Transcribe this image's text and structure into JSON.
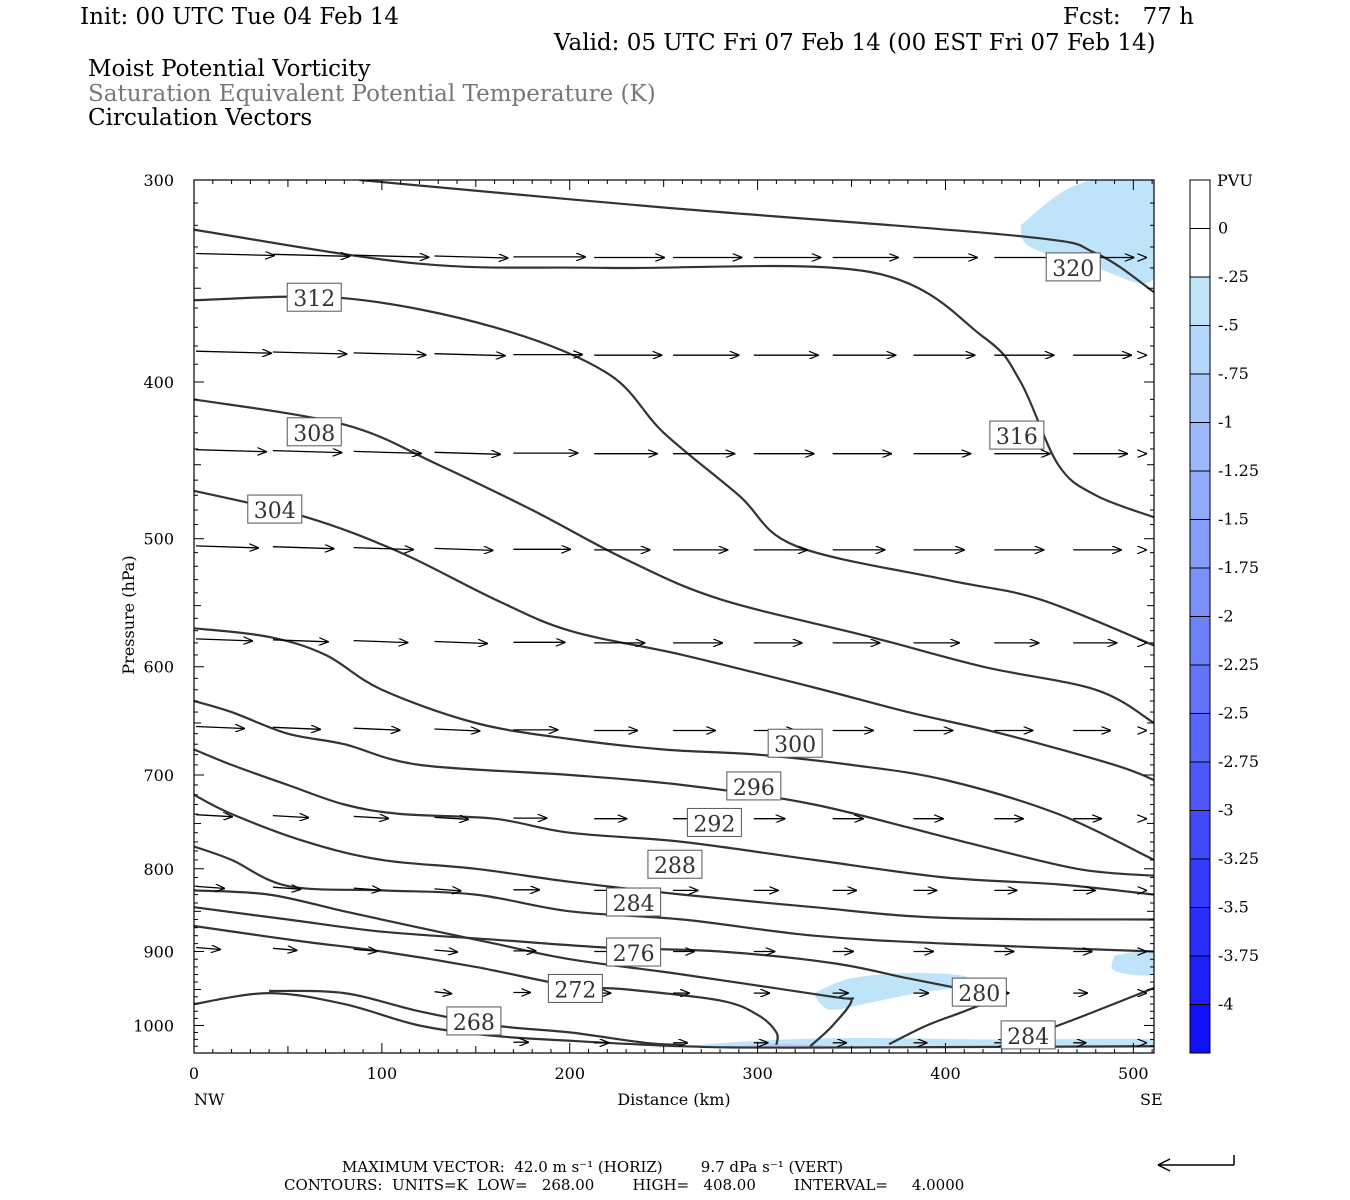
{
  "header": {
    "init": "Init: 00 UTC Tue 04 Feb 14",
    "fcst": "Fcst:   77 h",
    "valid": "Valid: 05 UTC Fri 07 Feb 14 (00 EST Fri 07 Feb 14)",
    "field1": "Moist Potential Vorticity",
    "field2": "Saturation Equivalent Potential Temperature (K)",
    "field3": "Circulation Vectors"
  },
  "footer": {
    "max_vector_line": "MAXIMUM VECTOR:  42.0 m s⁻¹ (HORIZ)        9.7 dPa s⁻¹ (VERT)",
    "contours_line": "CONTOURS:  UNITS=K  LOW=   268.00        HIGH=   408.00        INTERVAL=     4.0000"
  },
  "colors": {
    "contour": "#333333",
    "vector": "#000000",
    "pv_light": "#bfe4fa",
    "pv_lavender": "#c4b6f2"
  },
  "chart_data": {
    "type": "cross-section",
    "xlabel": "Distance (km)",
    "ylabel": "Pressure (hPa)",
    "xlim": [
      0,
      511
    ],
    "ylim": [
      300,
      1040
    ],
    "y_log": true,
    "x_ticks": [
      0,
      100,
      200,
      300,
      400,
      500
    ],
    "y_ticks": [
      300,
      400,
      500,
      600,
      700,
      800,
      900,
      1000
    ],
    "x_endpoints": {
      "left": "NW",
      "right": "SE"
    },
    "colorbar": {
      "unit": "PVU",
      "levels": [
        "0",
        "-.25",
        "-.5",
        "-.75",
        "-1",
        "-1.25",
        "-1.5",
        "-1.75",
        "-2",
        "-2.25",
        "-2.5",
        "-2.75",
        "-3",
        "-3.25",
        "-3.5",
        "-3.75",
        "-4"
      ],
      "colors": [
        "#ffffff",
        "#ffffff",
        "#bfe4fa",
        "#b3d6fb",
        "#a8c8fb",
        "#9cbafb",
        "#91acfb",
        "#859efb",
        "#7a90fb",
        "#6e82fb",
        "#6374fb",
        "#5766fb",
        "#4c58fb",
        "#404afb",
        "#353cfb",
        "#292efb",
        "#1e20fb",
        "#1010fb"
      ]
    },
    "theta_e_contours": [
      {
        "label": "320",
        "label_at": [
          468,
          340
        ],
        "points": [
          [
            88,
            300
          ],
          [
            250,
            312
          ],
          [
            440,
            325
          ],
          [
            480,
            333
          ],
          [
            511,
            352
          ]
        ]
      },
      {
        "label": "316",
        "label_at": [
          438,
          432
        ],
        "points": [
          [
            0,
            322
          ],
          [
            120,
            338
          ],
          [
            220,
            340
          ],
          [
            360,
            342
          ],
          [
            420,
            375
          ],
          [
            440,
            400
          ],
          [
            460,
            450
          ],
          [
            480,
            470
          ],
          [
            511,
            485
          ]
        ]
      },
      {
        "label": "312",
        "label_at": [
          64,
          355
        ],
        "points": [
          [
            0,
            356
          ],
          [
            80,
            355
          ],
          [
            160,
            370
          ],
          [
            220,
            395
          ],
          [
            250,
            430
          ],
          [
            290,
            470
          ],
          [
            320,
            505
          ],
          [
            400,
            530
          ],
          [
            450,
            545
          ],
          [
            511,
            582
          ]
        ]
      },
      {
        "label": "308",
        "label_at": [
          64,
          430
        ],
        "points": [
          [
            0,
            410
          ],
          [
            80,
            425
          ],
          [
            130,
            450
          ],
          [
            180,
            480
          ],
          [
            230,
            515
          ],
          [
            280,
            545
          ],
          [
            360,
            575
          ],
          [
            420,
            600
          ],
          [
            480,
            620
          ],
          [
            511,
            650
          ]
        ]
      },
      {
        "label": "304",
        "label_at": [
          43,
          480
        ],
        "points": [
          [
            0,
            467
          ],
          [
            60,
            485
          ],
          [
            110,
            510
          ],
          [
            160,
            545
          ],
          [
            200,
            570
          ],
          [
            260,
            590
          ],
          [
            330,
            618
          ],
          [
            380,
            640
          ],
          [
            430,
            660
          ],
          [
            490,
            690
          ],
          [
            511,
            705
          ]
        ]
      },
      {
        "label": "300",
        "label_at": [
          320,
          670
        ],
        "points": [
          [
            0,
            568
          ],
          [
            40,
            575
          ],
          [
            70,
            590
          ],
          [
            100,
            620
          ],
          [
            150,
            650
          ],
          [
            200,
            665
          ],
          [
            250,
            675
          ],
          [
            300,
            680
          ],
          [
            350,
            690
          ],
          [
            400,
            705
          ],
          [
            460,
            740
          ],
          [
            511,
            790
          ]
        ]
      },
      {
        "label": "296",
        "label_at": [
          298,
          712
        ],
        "points": [
          [
            0,
            630
          ],
          [
            20,
            640
          ],
          [
            50,
            660
          ],
          [
            80,
            670
          ],
          [
            120,
            690
          ],
          [
            200,
            700
          ],
          [
            260,
            710
          ],
          [
            330,
            730
          ],
          [
            410,
            770
          ],
          [
            470,
            800
          ],
          [
            511,
            808
          ]
        ]
      },
      {
        "label": "292",
        "label_at": [
          277,
          750
        ],
        "points": [
          [
            0,
            675
          ],
          [
            20,
            690
          ],
          [
            50,
            710
          ],
          [
            80,
            730
          ],
          [
            110,
            740
          ],
          [
            160,
            745
          ],
          [
            200,
            760
          ],
          [
            260,
            770
          ],
          [
            330,
            790
          ],
          [
            400,
            810
          ],
          [
            460,
            818
          ],
          [
            511,
            830
          ]
        ]
      },
      {
        "label": "288",
        "label_at": [
          256,
          796
        ],
        "points": [
          [
            0,
            720
          ],
          [
            20,
            740
          ],
          [
            60,
            770
          ],
          [
            100,
            790
          ],
          [
            150,
            800
          ],
          [
            200,
            815
          ],
          [
            260,
            830
          ],
          [
            330,
            845
          ],
          [
            400,
            858
          ],
          [
            511,
            860
          ]
        ]
      },
      {
        "label": "284",
        "label_at": [
          234,
          840
        ],
        "points": [
          [
            0,
            775
          ],
          [
            20,
            790
          ],
          [
            50,
            820
          ],
          [
            100,
            825
          ],
          [
            150,
            830
          ],
          [
            200,
            850
          ],
          [
            260,
            860
          ],
          [
            330,
            880
          ],
          [
            400,
            890
          ],
          [
            511,
            900
          ]
        ]
      },
      {
        "label": "284",
        "label_at": [
          444,
          1015
        ],
        "points": [
          [
            430,
            1030
          ],
          [
            470,
            990
          ],
          [
            511,
            948
          ]
        ]
      },
      {
        "label": "276",
        "label_at": [
          234,
          902
        ],
        "points": [
          [
            0,
            825
          ],
          [
            40,
            830
          ],
          [
            80,
            850
          ],
          [
            120,
            870
          ],
          [
            160,
            890
          ],
          [
            200,
            910
          ],
          [
            260,
            930
          ],
          [
            340,
            960
          ],
          [
            350,
            965
          ],
          [
            340,
            1000
          ],
          [
            328,
            1030
          ]
        ]
      },
      {
        "label": "",
        "label_at": null,
        "points": [
          [
            0,
            845
          ],
          [
            50,
            860
          ],
          [
            100,
            875
          ],
          [
            160,
            885
          ],
          [
            220,
            895
          ],
          [
            280,
            900
          ],
          [
            340,
            915
          ],
          [
            380,
            935
          ],
          [
            420,
            955
          ],
          [
            428,
            960
          ],
          [
            410,
            980
          ],
          [
            390,
            1000
          ],
          [
            370,
            1027
          ]
        ]
      },
      {
        "label": "280",
        "label_at": [
          418,
          955
        ],
        "points": [
          [
            0,
            868
          ],
          [
            30,
            878
          ],
          [
            60,
            888
          ],
          [
            100,
            900
          ],
          [
            150,
            920
          ],
          [
            200,
            945
          ],
          [
            230,
            950
          ],
          [
            280,
            965
          ],
          [
            300,
            985
          ],
          [
            310,
            1010
          ],
          [
            310,
            1028
          ]
        ]
      },
      {
        "label": "272",
        "label_at": [
          203,
          950
        ],
        "points": [
          [
            40,
            952
          ],
          [
            80,
            955
          ],
          [
            120,
            980
          ],
          [
            160,
            1000
          ],
          [
            200,
            1010
          ],
          [
            240,
            1025
          ],
          [
            260,
            1028
          ]
        ]
      },
      {
        "label": "268",
        "label_at": [
          149,
          995
        ],
        "points": [
          [
            0,
            970
          ],
          [
            40,
            955
          ],
          [
            80,
            970
          ],
          [
            120,
            1000
          ],
          [
            160,
            1015
          ],
          [
            200,
            1022
          ],
          [
            260,
            1030
          ],
          [
            320,
            1032
          ],
          [
            511,
            1030
          ]
        ]
      }
    ],
    "negative_pv_regions": [
      {
        "level": "-.5",
        "points": [
          [
            440,
            320
          ],
          [
            470,
            302
          ],
          [
            511,
            300
          ],
          [
            511,
            345
          ],
          [
            480,
            340
          ],
          [
            445,
            330
          ]
        ]
      },
      {
        "level": "-.5",
        "points": [
          [
            330,
            955
          ],
          [
            350,
            935
          ],
          [
            380,
            928
          ],
          [
            410,
            932
          ],
          [
            410,
            945
          ],
          [
            385,
            955
          ],
          [
            360,
            968
          ],
          [
            340,
            978
          ],
          [
            333,
            968
          ]
        ]
      },
      {
        "level": "-.5",
        "points": [
          [
            490,
            905
          ],
          [
            511,
            900
          ],
          [
            511,
            930
          ],
          [
            490,
            925
          ]
        ]
      },
      {
        "level": "-.5",
        "points": [
          [
            260,
            1030
          ],
          [
            300,
            1022
          ],
          [
            350,
            1018
          ],
          [
            420,
            1020
          ],
          [
            511,
            1020
          ],
          [
            511,
            1032
          ],
          [
            260,
            1032
          ]
        ]
      }
    ],
    "max_vector": {
      "horiz": "42.0 m s⁻¹",
      "vert": "9.7 dPa s⁻¹"
    },
    "contour_stats": {
      "units": "K",
      "low": 268.0,
      "high": 408.0,
      "interval": 4.0
    }
  }
}
